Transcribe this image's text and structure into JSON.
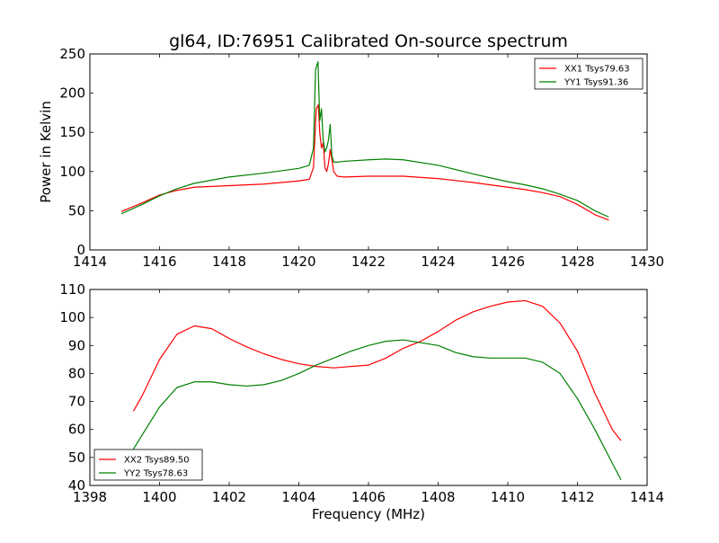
{
  "chart_data": [
    {
      "type": "line",
      "title": "gl64, ID:76951 Calibrated On-source spectrum",
      "xlabel": "",
      "ylabel": "Power in Kelvin",
      "xlim": [
        1414,
        1430
      ],
      "ylim": [
        0,
        250
      ],
      "xticks": [
        1414,
        1416,
        1418,
        1420,
        1422,
        1424,
        1426,
        1428,
        1430
      ],
      "yticks": [
        0,
        50,
        100,
        150,
        200,
        250
      ],
      "grid": false,
      "legend_position": "top-right",
      "series": [
        {
          "name": "XX1 Tsys79.63",
          "color": "#ff0000",
          "x": [
            1414.9,
            1415.5,
            1416,
            1416.5,
            1417,
            1418,
            1419,
            1419.5,
            1420,
            1420.3,
            1420.42,
            1420.5,
            1420.56,
            1420.6,
            1420.65,
            1420.7,
            1420.75,
            1420.8,
            1420.85,
            1420.9,
            1420.95,
            1421.0,
            1421.1,
            1421.3,
            1422,
            1422.5,
            1423,
            1424,
            1425,
            1426,
            1426.5,
            1427,
            1427.5,
            1428,
            1428.5,
            1428.9
          ],
          "values": [
            49,
            60,
            70,
            76,
            80,
            82,
            84,
            86,
            88,
            90,
            105,
            180,
            185,
            150,
            130,
            137,
            105,
            100,
            110,
            128,
            115,
            100,
            94,
            93,
            94,
            94,
            94,
            91,
            86,
            80,
            77,
            73,
            68,
            58,
            45,
            38
          ]
        },
        {
          "name": "YY1 Tsys91.36",
          "color": "#008000",
          "x": [
            1414.9,
            1415.5,
            1416,
            1416.5,
            1417,
            1418,
            1419,
            1419.5,
            1420,
            1420.3,
            1420.42,
            1420.48,
            1420.55,
            1420.6,
            1420.65,
            1420.7,
            1420.75,
            1420.8,
            1420.85,
            1420.9,
            1420.95,
            1421.0,
            1421.1,
            1421.3,
            1422,
            1422.5,
            1423,
            1424,
            1425,
            1426,
            1426.5,
            1427,
            1427.5,
            1428,
            1428.5,
            1428.9
          ],
          "values": [
            46,
            58,
            69,
            78,
            85,
            93,
            98,
            101,
            104,
            108,
            130,
            230,
            240,
            165,
            180,
            140,
            125,
            130,
            140,
            160,
            120,
            112,
            112,
            113,
            115,
            116,
            115,
            108,
            97,
            87,
            83,
            78,
            71,
            63,
            50,
            42
          ]
        }
      ]
    },
    {
      "type": "line",
      "title": "",
      "xlabel": "Frequency (MHz)",
      "ylabel": "",
      "xlim": [
        1398,
        1414
      ],
      "ylim": [
        40,
        110
      ],
      "xticks": [
        1398,
        1400,
        1402,
        1404,
        1406,
        1408,
        1410,
        1412,
        1414
      ],
      "yticks": [
        40,
        50,
        60,
        70,
        80,
        90,
        100,
        110
      ],
      "grid": false,
      "legend_position": "bottom-left",
      "series": [
        {
          "name": "XX2 Tsys89.50",
          "color": "#ff0000",
          "x": [
            1399.25,
            1399.5,
            1400,
            1400.5,
            1401,
            1401.5,
            1402,
            1402.5,
            1403,
            1403.5,
            1404,
            1404.5,
            1405,
            1405.5,
            1406,
            1406.5,
            1407,
            1407.5,
            1408,
            1408.5,
            1409,
            1409.5,
            1410,
            1410.5,
            1411,
            1411.5,
            1412,
            1412.5,
            1413,
            1413.25
          ],
          "values": [
            66.5,
            72,
            85,
            94,
            97,
            96,
            92.5,
            89.5,
            87,
            85,
            83.5,
            82.5,
            82,
            82.5,
            83,
            85.5,
            89,
            91.5,
            95,
            99,
            102,
            104,
            105.5,
            106,
            104,
            98,
            88,
            73,
            60,
            56
          ]
        },
        {
          "name": "YY2 Tsys78.63",
          "color": "#008000",
          "x": [
            1399.25,
            1399.5,
            1400,
            1400.5,
            1401,
            1401.5,
            1402,
            1402.5,
            1403,
            1403.5,
            1404,
            1404.5,
            1405,
            1405.5,
            1406,
            1406.5,
            1407,
            1407.5,
            1408,
            1408.5,
            1409,
            1409.5,
            1410,
            1410.5,
            1411,
            1411.5,
            1412,
            1412.5,
            1413,
            1413.25
          ],
          "values": [
            53,
            58,
            68,
            75,
            77,
            77,
            76,
            75.5,
            76,
            77.5,
            80,
            83,
            85.5,
            88,
            90,
            91.5,
            92,
            91,
            90,
            87.5,
            86,
            85.5,
            85.5,
            85.5,
            84,
            80,
            71,
            60,
            48,
            42
          ]
        }
      ]
    }
  ]
}
